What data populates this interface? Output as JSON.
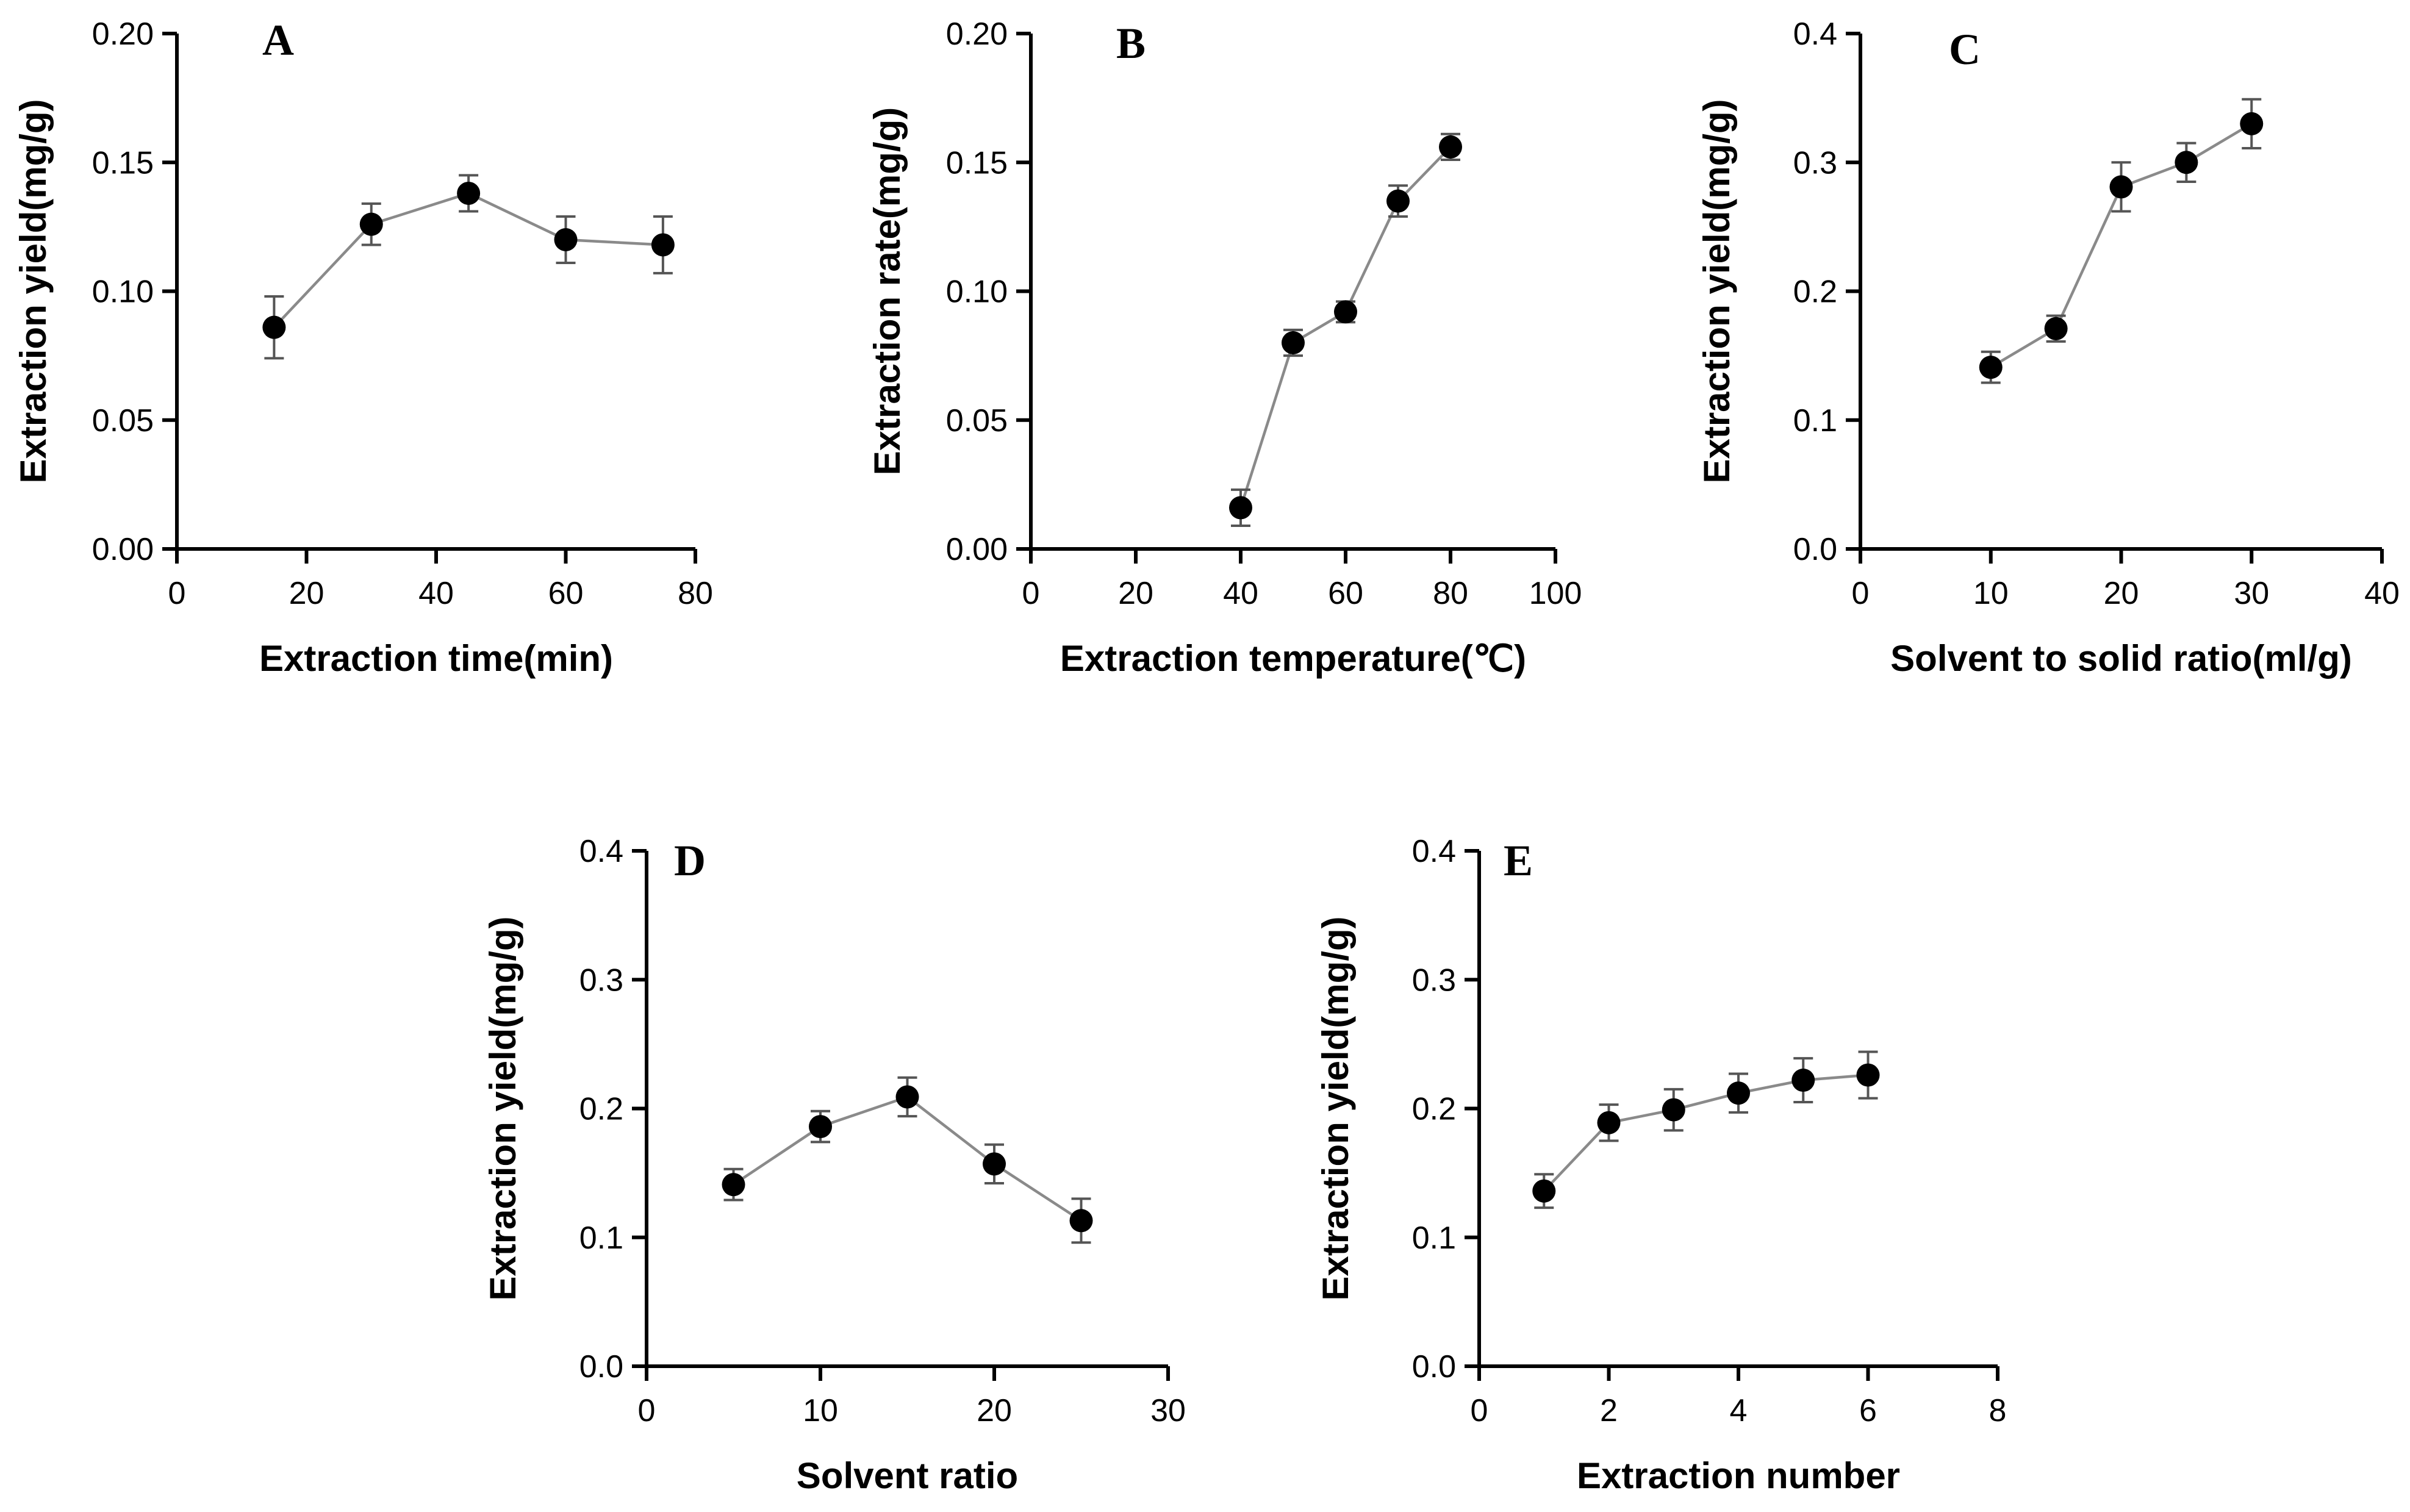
{
  "chart_data": [
    {
      "type": "scatter",
      "panel": "A",
      "xlabel": "Extraction time(min)",
      "ylabel": "Extraction yield(mg/g)",
      "xlim": [
        0,
        80
      ],
      "ylim": [
        0,
        0.2
      ],
      "xticks": [
        "0",
        "20",
        "40",
        "60",
        "80"
      ],
      "yticks": [
        "0.00",
        "0.05",
        "0.10",
        "0.15",
        "0.20"
      ],
      "x": [
        15,
        30,
        45,
        60,
        75
      ],
      "y": [
        0.086,
        0.126,
        0.138,
        0.12,
        0.118
      ],
      "err": [
        0.012,
        0.008,
        0.007,
        0.009,
        0.011
      ]
    },
    {
      "type": "scatter",
      "panel": "B",
      "xlabel": "Extraction temperature(℃)",
      "ylabel": "Extraction rate(mg/g)",
      "xlim": [
        0,
        100
      ],
      "ylim": [
        0,
        0.2
      ],
      "xticks": [
        "0",
        "20",
        "40",
        "60",
        "80",
        "100"
      ],
      "yticks": [
        "0.00",
        "0.05",
        "0.10",
        "0.15",
        "0.20"
      ],
      "x": [
        40,
        50,
        60,
        70,
        80
      ],
      "y": [
        0.016,
        0.08,
        0.092,
        0.135,
        0.156
      ],
      "err": [
        0.007,
        0.005,
        0.004,
        0.006,
        0.005
      ]
    },
    {
      "type": "scatter",
      "panel": "C",
      "xlabel": "Solvent to solid ratio(ml/g)",
      "ylabel": "Extraction yield(mg/g)",
      "xlim": [
        0,
        40
      ],
      "ylim": [
        0,
        0.4
      ],
      "xticks": [
        "0",
        "10",
        "20",
        "30",
        "40"
      ],
      "yticks": [
        "0.0",
        "0.1",
        "0.2",
        "0.3",
        "0.4"
      ],
      "x": [
        10,
        15,
        20,
        25,
        30
      ],
      "y": [
        0.141,
        0.171,
        0.281,
        0.3,
        0.33
      ],
      "err": [
        0.012,
        0.01,
        0.019,
        0.015,
        0.019
      ]
    },
    {
      "type": "scatter",
      "panel": "D",
      "xlabel": "Solvent ratio",
      "ylabel": "Extraction yield(mg/g)",
      "xlim": [
        0,
        30
      ],
      "ylim": [
        0,
        0.4
      ],
      "xticks": [
        "0",
        "10",
        "20",
        "30"
      ],
      "yticks": [
        "0.0",
        "0.1",
        "0.2",
        "0.3",
        "0.4"
      ],
      "x": [
        5,
        10,
        15,
        20,
        25
      ],
      "y": [
        0.141,
        0.186,
        0.209,
        0.157,
        0.113
      ],
      "err": [
        0.012,
        0.012,
        0.015,
        0.015,
        0.017
      ]
    },
    {
      "type": "scatter",
      "panel": "E",
      "xlabel": "Extraction number",
      "ylabel": "Extraction yield(mg/g)",
      "xlim": [
        0,
        8
      ],
      "ylim": [
        0,
        0.4
      ],
      "xticks": [
        "0",
        "2",
        "4",
        "6",
        "8"
      ],
      "yticks": [
        "0.0",
        "0.1",
        "0.2",
        "0.3",
        "0.4"
      ],
      "x": [
        1,
        2,
        3,
        4,
        5,
        6
      ],
      "y": [
        0.136,
        0.189,
        0.199,
        0.212,
        0.222,
        0.226
      ],
      "err": [
        0.013,
        0.014,
        0.016,
        0.015,
        0.017,
        0.018
      ]
    }
  ]
}
